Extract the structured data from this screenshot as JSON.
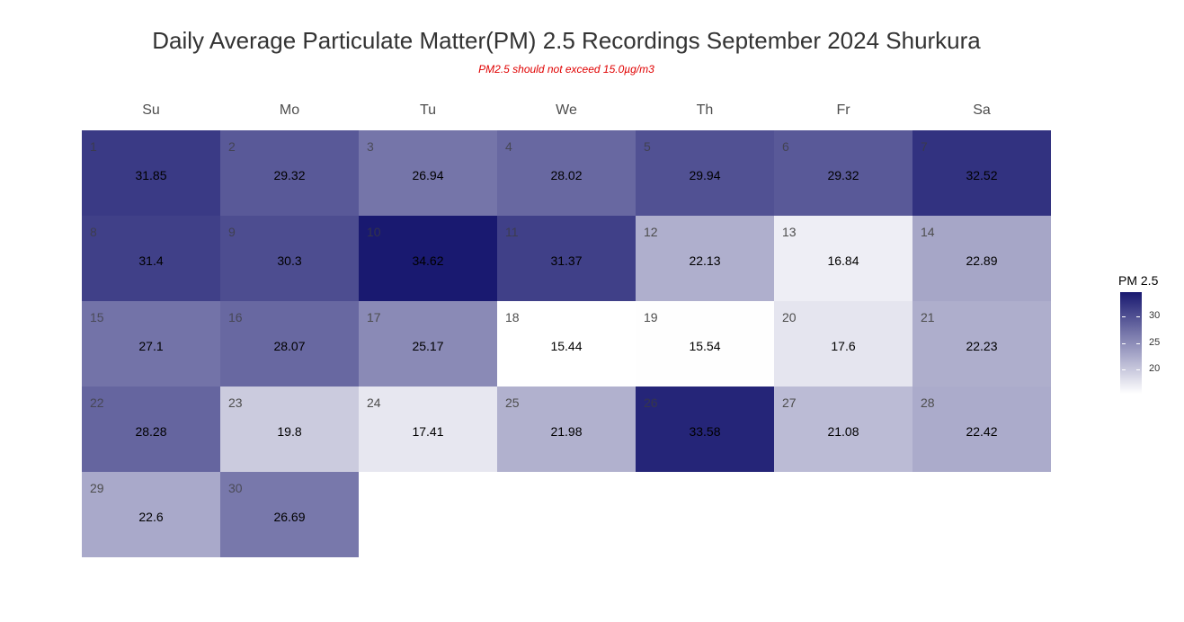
{
  "chart_data": {
    "type": "heatmap",
    "title": "Daily Average Particulate Matter(PM) 2.5 Recordings September 2024 Shurkura",
    "subtitle": "PM2.5 should not exceed 15.0µg/m3",
    "weekdays": [
      "Su",
      "Mo",
      "Tu",
      "We",
      "Th",
      "Fr",
      "Sa"
    ],
    "first_weekday_index": 0,
    "days": [
      1,
      2,
      3,
      4,
      5,
      6,
      7,
      8,
      9,
      10,
      11,
      12,
      13,
      14,
      15,
      16,
      17,
      18,
      19,
      20,
      21,
      22,
      23,
      24,
      25,
      26,
      27,
      28,
      29,
      30
    ],
    "values": [
      31.85,
      29.32,
      26.94,
      28.02,
      29.94,
      29.32,
      32.52,
      31.4,
      30.3,
      34.62,
      31.37,
      22.13,
      16.84,
      22.89,
      27.1,
      28.07,
      25.17,
      15.44,
      15.54,
      17.6,
      22.23,
      28.28,
      19.8,
      17.41,
      21.98,
      33.58,
      21.08,
      22.42,
      22.6,
      26.69
    ],
    "value_labels": [
      "31.85",
      "29.32",
      "26.94",
      "28.02",
      "29.94",
      "29.32",
      "32.52",
      "31.4",
      "30.3",
      "34.62",
      "31.37",
      "22.13",
      "16.84",
      "22.89",
      "27.1",
      "28.07",
      "25.17",
      "15.44",
      "15.54",
      "17.6",
      "22.23",
      "28.28",
      "19.8",
      "17.41",
      "21.98",
      "33.58",
      "21.08",
      "22.42",
      "22.6",
      "26.69"
    ],
    "legend": {
      "title": "PM 2.5",
      "ticks": [
        20,
        25,
        30
      ],
      "tick_labels": [
        "20",
        "25",
        "30"
      ],
      "range": [
        15.44,
        34.62
      ],
      "low_color": "#ffffff",
      "high_color": "#191970",
      "placement": "right"
    }
  }
}
